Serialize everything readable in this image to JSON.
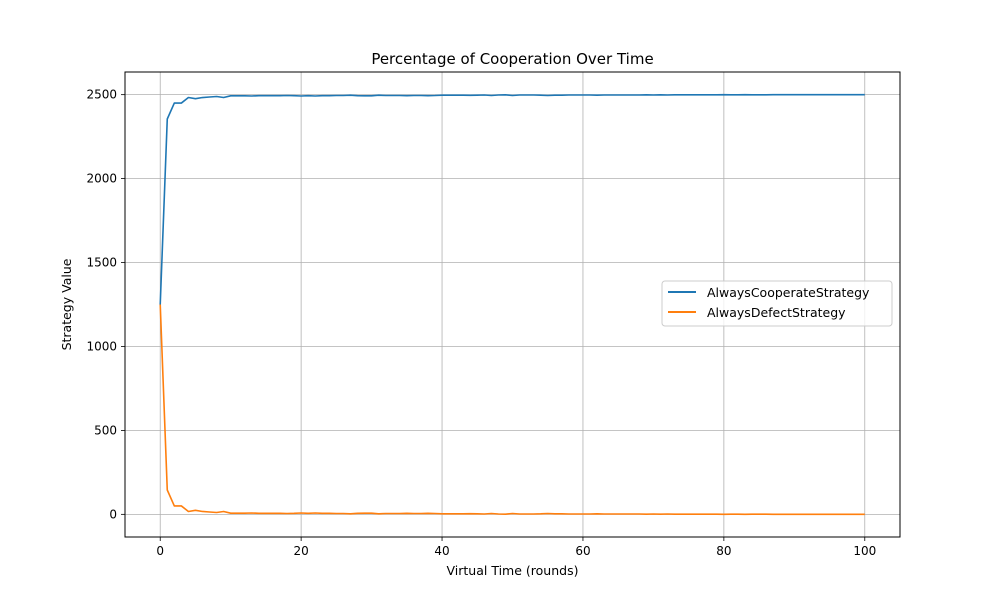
{
  "chart_data": {
    "type": "line",
    "title": "Percentage of Cooperation Over Time",
    "xlabel": "Virtual Time (rounds)",
    "ylabel": "Strategy Value",
    "xlim": [
      -5,
      105
    ],
    "ylim": [
      -135,
      2635
    ],
    "xticks": [
      0,
      20,
      40,
      60,
      80,
      100
    ],
    "xtick_labels": [
      "0",
      "20",
      "40",
      "60",
      "80",
      "100"
    ],
    "yticks": [
      0,
      500,
      1000,
      1500,
      2000,
      2500
    ],
    "ytick_labels": [
      "0",
      "500",
      "1000",
      "1500",
      "2000",
      "2500"
    ],
    "grid": true,
    "legend": "center-right",
    "x": [
      0,
      1,
      2,
      3,
      4,
      5,
      6,
      7,
      8,
      9,
      10,
      11,
      12,
      13,
      14,
      15,
      16,
      17,
      18,
      19,
      20,
      21,
      22,
      23,
      24,
      25,
      26,
      27,
      28,
      29,
      30,
      31,
      32,
      33,
      34,
      35,
      36,
      37,
      38,
      39,
      40,
      41,
      42,
      43,
      44,
      45,
      46,
      47,
      48,
      49,
      50,
      51,
      52,
      53,
      54,
      55,
      56,
      57,
      58,
      59,
      60,
      61,
      62,
      63,
      64,
      65,
      66,
      67,
      68,
      69,
      70,
      71,
      72,
      73,
      74,
      75,
      76,
      77,
      78,
      79,
      80,
      81,
      82,
      83,
      84,
      85,
      86,
      87,
      88,
      89,
      90,
      91,
      92,
      93,
      94,
      95,
      96,
      97,
      98,
      99,
      100
    ],
    "series": [
      {
        "name": "AlwaysCooperateStrategy",
        "color": "#1f77b4",
        "values": [
          1250,
          2355,
          2450,
          2450,
          2483,
          2476,
          2483,
          2486,
          2489,
          2483,
          2493,
          2493,
          2493,
          2492,
          2494,
          2494,
          2494,
          2494,
          2495,
          2494,
          2492,
          2494,
          2492,
          2494,
          2494,
          2495,
          2495,
          2497,
          2494,
          2493,
          2493,
          2497,
          2495,
          2495,
          2495,
          2494,
          2495,
          2495,
          2494,
          2495,
          2497,
          2497,
          2497,
          2497,
          2496,
          2497,
          2498,
          2495,
          2498,
          2499,
          2495,
          2498,
          2498,
          2498,
          2497,
          2495,
          2497,
          2497,
          2498,
          2498,
          2498,
          2498,
          2497,
          2498,
          2498,
          2498,
          2498,
          2498,
          2498,
          2499,
          2498,
          2499,
          2498,
          2499,
          2499,
          2499,
          2499,
          2499,
          2499,
          2499,
          2500,
          2499,
          2499,
          2500,
          2499,
          2499,
          2499,
          2500,
          2500,
          2500,
          2500,
          2500,
          2500,
          2500,
          2500,
          2500,
          2500,
          2500,
          2500,
          2500,
          2500
        ]
      },
      {
        "name": "AlwaysDefectStrategy",
        "color": "#ff7f0e",
        "values": [
          1250,
          145,
          50,
          50,
          17,
          24,
          17,
          14,
          11,
          17,
          7,
          7,
          7,
          8,
          6,
          6,
          6,
          6,
          5,
          6,
          8,
          6,
          8,
          6,
          6,
          5,
          5,
          3,
          6,
          7,
          7,
          3,
          5,
          5,
          5,
          6,
          5,
          5,
          6,
          5,
          3,
          3,
          3,
          3,
          4,
          3,
          2,
          5,
          2,
          1,
          5,
          2,
          2,
          2,
          3,
          5,
          3,
          3,
          2,
          2,
          2,
          2,
          3,
          2,
          2,
          2,
          2,
          2,
          2,
          1,
          2,
          1,
          2,
          1,
          1,
          1,
          1,
          1,
          1,
          1,
          0,
          1,
          1,
          0,
          1,
          1,
          1,
          0,
          0,
          0,
          0,
          0,
          0,
          0,
          0,
          0,
          0,
          0,
          0,
          0,
          0
        ]
      }
    ]
  }
}
